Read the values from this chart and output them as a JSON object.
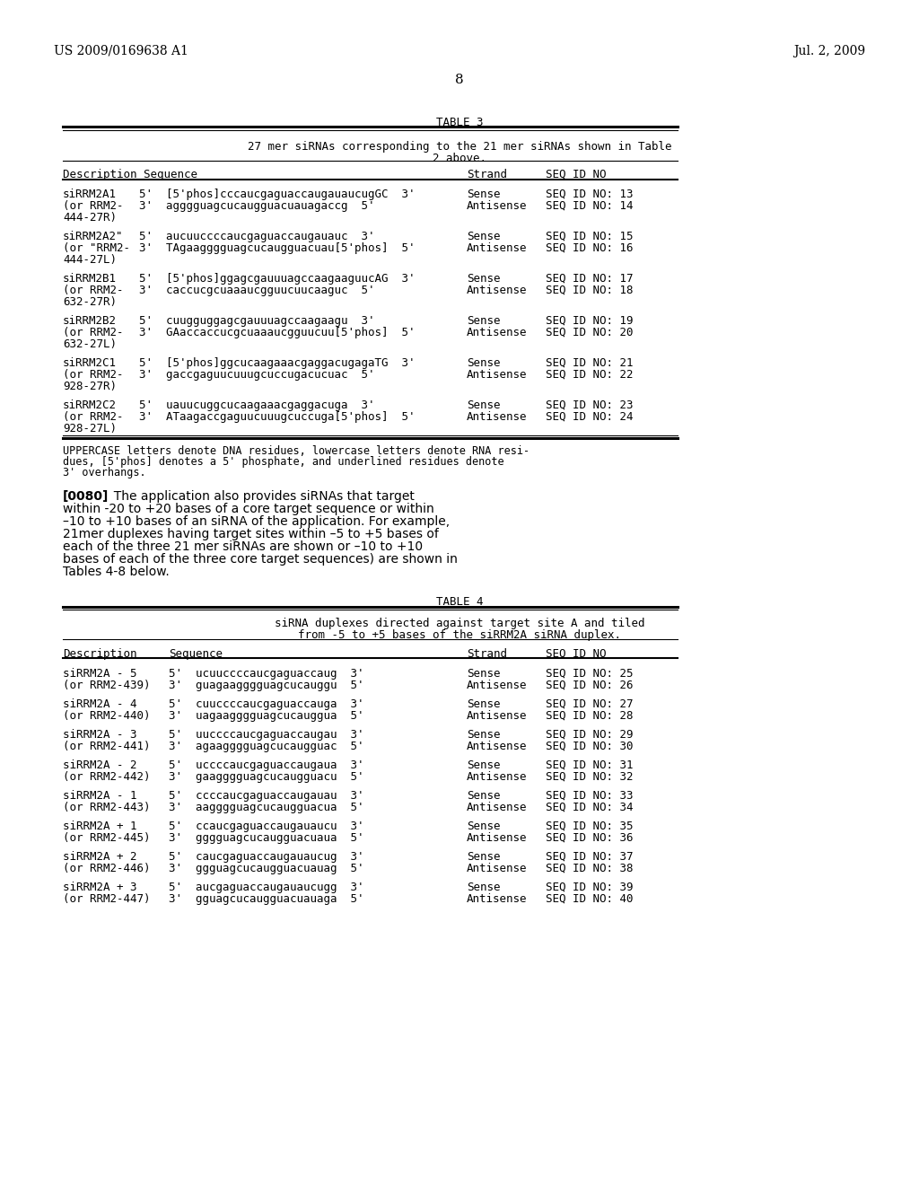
{
  "bg_color": "#ffffff",
  "header_left": "US 2009/0169638 A1",
  "header_right": "Jul. 2, 2009",
  "page_number": "8"
}
